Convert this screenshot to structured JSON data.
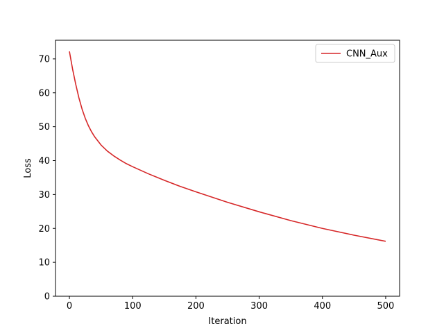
{
  "chart_data": {
    "type": "line",
    "title": "",
    "xlabel": "Iteration",
    "ylabel": "Loss",
    "xlim": [
      -22,
      522
    ],
    "ylim": [
      0,
      75.5
    ],
    "xticks": [
      0,
      100,
      200,
      300,
      400,
      500
    ],
    "yticks": [
      0,
      10,
      20,
      30,
      40,
      50,
      60,
      70
    ],
    "grid": false,
    "legend": {
      "placement": "top-right"
    },
    "series": [
      {
        "name": "CNN_Aux",
        "color": "#d62728",
        "x": [
          0,
          5,
          10,
          15,
          20,
          25,
          30,
          35,
          40,
          50,
          60,
          70,
          80,
          90,
          100,
          125,
          150,
          175,
          200,
          250,
          300,
          350,
          400,
          450,
          500
        ],
        "y": [
          72.2,
          67.0,
          62.5,
          58.5,
          55.2,
          52.5,
          50.3,
          48.5,
          47.0,
          44.6,
          42.8,
          41.4,
          40.2,
          39.1,
          38.2,
          36.1,
          34.2,
          32.4,
          30.8,
          27.7,
          24.9,
          22.3,
          20.0,
          18.0,
          16.2
        ]
      }
    ]
  }
}
